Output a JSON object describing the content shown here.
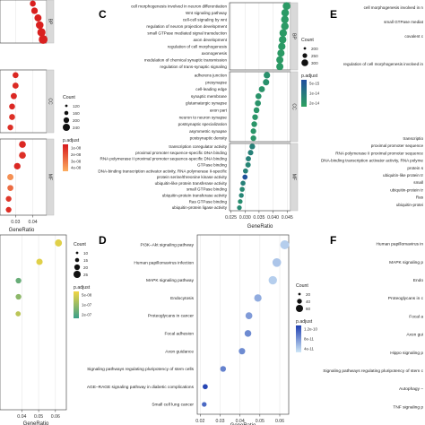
{
  "figure": {
    "background": "#ffffff",
    "strip_color": "#d9d9d9",
    "strip_border": "#bdbdbd"
  },
  "chart_data": [
    {
      "panel": "A",
      "type": "scatter",
      "letter": "",
      "xlabel": "GeneRatio",
      "x_ticks": [
        "0.03",
        "0.04"
      ],
      "x_domain": [
        0.021,
        0.048
      ],
      "x_clip": [
        0.021,
        0.048
      ],
      "facet_strips": [
        "BP",
        "CC",
        "MF"
      ],
      "size_legend": {
        "title": "Count",
        "labels": [
          "120",
          "160",
          "200",
          "240"
        ]
      },
      "color_legend": {
        "title": "p.adjust",
        "labels": [
          "1e-08",
          "2e-08",
          "3e-08",
          "4e-08"
        ],
        "colors": [
          "#d7191c",
          "#fdae61"
        ]
      },
      "facets": [
        {
          "rows": 6,
          "points": [
            {
              "row": 1,
              "x": 0.04,
              "size": 0.35,
              "color": 0.05
            },
            {
              "row": 2,
              "x": 0.041,
              "size": 0.45,
              "color": 0.05
            },
            {
              "row": 3,
              "x": 0.043,
              "size": 0.55,
              "color": 0.05
            },
            {
              "row": 4,
              "x": 0.044,
              "size": 0.65,
              "color": 0.05
            },
            {
              "row": 5,
              "x": 0.045,
              "size": 0.75,
              "color": 0.05
            },
            {
              "row": 6,
              "x": 0.046,
              "size": 0.85,
              "color": 0.05
            }
          ]
        },
        {
          "rows": 6,
          "points": [
            {
              "row": 1,
              "x": 0.03,
              "size": 0.35,
              "color": 0.1
            },
            {
              "row": 2,
              "x": 0.03,
              "size": 0.38,
              "color": 0.12
            },
            {
              "row": 3,
              "x": 0.029,
              "size": 0.38,
              "color": 0.1
            },
            {
              "row": 4,
              "x": 0.028,
              "size": 0.35,
              "color": 0.1
            },
            {
              "row": 5,
              "x": 0.028,
              "size": 0.35,
              "color": 0.15
            },
            {
              "row": 6,
              "x": 0.027,
              "size": 0.3,
              "color": 0.15
            }
          ]
        },
        {
          "rows": 7,
          "points": [
            {
              "row": 1,
              "x": 0.034,
              "size": 0.5,
              "color": 0.1
            },
            {
              "row": 2,
              "x": 0.034,
              "size": 0.5,
              "color": 0.15
            },
            {
              "row": 3,
              "x": 0.031,
              "size": 0.45,
              "color": 0.1
            },
            {
              "row": 4,
              "x": 0.027,
              "size": 0.4,
              "color": 0.8
            },
            {
              "row": 5,
              "x": 0.027,
              "size": 0.35,
              "color": 0.55
            },
            {
              "row": 6,
              "x": 0.026,
              "size": 0.3,
              "color": 0.2
            },
            {
              "row": 7,
              "x": 0.026,
              "size": 0.3,
              "color": 0.15
            }
          ]
        }
      ]
    },
    {
      "panel": "C",
      "type": "scatter",
      "letter": "C",
      "xlabel": "GeneRatio",
      "x_ticks": [
        "0.025",
        "0.030",
        "0.035",
        "0.040",
        "0.045"
      ],
      "x_domain": [
        0.0245,
        0.0462
      ],
      "facet_strips": [
        "BP",
        "CC",
        "MF"
      ],
      "size_legend": {
        "title": "Count",
        "labels": [
          "200",
          "250",
          "300"
        ]
      },
      "color_legend": {
        "title": "p.adjust",
        "labels": [
          "5e-15",
          "1e-14",
          "2e-14"
        ],
        "colors": [
          "#1f4e9e",
          "#2ca25f"
        ]
      },
      "facets": [
        {
          "terms": [
            "cell morphogenesis involved in neuron differentiation",
            "Wnt signaling pathway",
            "cell-cell signaling by wnt",
            "regulation of neuron projection development",
            "small GTPase mediated signal transduction",
            "axon development",
            "regulation of cell morphogenesis",
            "axonogenesis",
            "modulation of chemical synaptic transmission",
            "regulation of trans-synaptic signaling"
          ],
          "points": [
            {
              "x": 0.0448,
              "size": 0.9,
              "color": 0.9
            },
            {
              "x": 0.0443,
              "size": 0.88,
              "color": 0.9
            },
            {
              "x": 0.0442,
              "size": 0.87,
              "color": 0.9
            },
            {
              "x": 0.0442,
              "size": 0.87,
              "color": 0.9
            },
            {
              "x": 0.0436,
              "size": 0.85,
              "color": 0.9
            },
            {
              "x": 0.0434,
              "size": 0.85,
              "color": 0.9
            },
            {
              "x": 0.0431,
              "size": 0.82,
              "color": 0.9
            },
            {
              "x": 0.0428,
              "size": 0.8,
              "color": 0.9
            },
            {
              "x": 0.0424,
              "size": 0.78,
              "color": 0.9
            },
            {
              "x": 0.0424,
              "size": 0.78,
              "color": 0.9
            }
          ]
        },
        {
          "terms": [
            "adherens junction",
            "presynapse",
            "cell-leading edge",
            "synaptic membrane",
            "glutamatergic synapse",
            "axon part",
            "neuron to neuron synapse",
            "postsynaptic specialization",
            "asymmetric synapse",
            "postsynaptic density"
          ],
          "points": [
            {
              "x": 0.0378,
              "size": 0.65,
              "color": 0.8
            },
            {
              "x": 0.0375,
              "size": 0.62,
              "color": 0.8
            },
            {
              "x": 0.036,
              "size": 0.58,
              "color": 0.82
            },
            {
              "x": 0.0348,
              "size": 0.55,
              "color": 0.82
            },
            {
              "x": 0.0346,
              "size": 0.55,
              "color": 0.82
            },
            {
              "x": 0.0341,
              "size": 0.52,
              "color": 0.85
            },
            {
              "x": 0.0336,
              "size": 0.5,
              "color": 0.85
            },
            {
              "x": 0.0333,
              "size": 0.5,
              "color": 0.85
            },
            {
              "x": 0.033,
              "size": 0.48,
              "color": 0.85
            },
            {
              "x": 0.033,
              "size": 0.48,
              "color": 0.85
            }
          ]
        },
        {
          "terms": [
            "transcription coregulator activity",
            "proximal promoter sequence-specific DNA binding",
            "RNA polymerase II proximal promoter sequence-specific DNA binding",
            "GTPase binding",
            "DNA-binding transcription activator activity, RNA polymerase II-specific",
            "protein serine/threonine kinase activity",
            "ubiquitin-like protein transferase activity",
            "small GTPase binding",
            "ubiquitin-protein transferase activity",
            "Ras GTPase binding",
            "ubiquitin-protein ligase activity"
          ],
          "points": [
            {
              "x": 0.0326,
              "size": 0.48,
              "color": 0.6
            },
            {
              "x": 0.032,
              "size": 0.45,
              "color": 0.6
            },
            {
              "x": 0.0312,
              "size": 0.42,
              "color": 0.6
            },
            {
              "x": 0.0311,
              "size": 0.42,
              "color": 0.65
            },
            {
              "x": 0.0302,
              "size": 0.38,
              "color": 0.6
            },
            {
              "x": 0.03,
              "size": 0.38,
              "color": 0.05
            },
            {
              "x": 0.0293,
              "size": 0.35,
              "color": 0.6
            },
            {
              "x": 0.029,
              "size": 0.35,
              "color": 0.7
            },
            {
              "x": 0.0287,
              "size": 0.32,
              "color": 0.65
            },
            {
              "x": 0.0283,
              "size": 0.3,
              "color": 0.75
            },
            {
              "x": 0.028,
              "size": 0.3,
              "color": 0.7
            }
          ]
        }
      ]
    },
    {
      "panel": "E",
      "type": "scatter",
      "letter": "E",
      "terms_top": [
        "cell morphogenesis involved in n",
        "small GTPase mediat",
        "covalent c"
      ],
      "term_mid": "regulation of cell morphogenesis involved in",
      "terms_bottom": [
        "transcriptio",
        "proximal promoter sequence",
        "RNA polymerase II proximal promoter sequence",
        "DNA-binding transcription activator activity, RNA polyme",
        "protein s",
        "ubiquitin-like protein tr",
        "small",
        "ubiquitin-protein tr",
        "Ras",
        "ubiquitin-protei"
      ]
    },
    {
      "panel": "B",
      "type": "scatter",
      "letter": "",
      "xlabel": "GeneRatio",
      "x_ticks": [
        "0.04",
        "0.05",
        "0.06"
      ],
      "x_domain": [
        0.027,
        0.0665
      ],
      "x_clip": [
        0.027,
        0.0665
      ],
      "size_legend": {
        "title": "Count",
        "labels": [
          "10",
          "15",
          "20",
          "25"
        ]
      },
      "color_legend": {
        "title": "p.adjust",
        "labels": [
          "5e-08",
          "1e-07",
          "2e-07"
        ],
        "colors": [
          "#f2d542",
          "#3aa08a"
        ]
      },
      "points": [
        {
          "x": 0.0618,
          "size": 0.75,
          "color": 0.1
        },
        {
          "x": 0.0505,
          "size": 0.6,
          "color": 0.1
        },
        {
          "x": 0.038,
          "size": 0.45,
          "color": 0.75
        },
        {
          "x": 0.038,
          "size": 0.45,
          "color": 0.55
        },
        {
          "x": 0.0378,
          "size": 0.35,
          "color": 0.3
        }
      ]
    },
    {
      "panel": "D",
      "type": "scatter",
      "letter": "D",
      "xlabel": "GeneRatio",
      "x_ticks": [
        "0.02",
        "0.03",
        "0.04",
        "0.05",
        "0.06"
      ],
      "x_domain": [
        0.0185,
        0.0645
      ],
      "size_legend": {
        "title": "Count",
        "labels": [
          "20",
          "40",
          "60"
        ]
      },
      "color_legend": {
        "title": "p.adjust",
        "labels": [
          "1.2e-10",
          "8e-11",
          "4e-11"
        ],
        "colors": [
          "#1f3fb2",
          "#cfe7f7"
        ]
      },
      "terms": [
        "PI3K–Akt signaling pathway",
        "Human papillomavirus infection",
        "MAPK signaling pathway",
        "Endocytosis",
        "Proteoglycans in cancer",
        "Focal adhesion",
        "Axon guidance",
        "Signaling pathways regulating pluripotency of stem cells",
        "AGE–RAGE signaling pathway in diabetic complications",
        "Small cell lung cancer"
      ],
      "points": [
        {
          "x": 0.0625,
          "size": 0.95,
          "color": 0.85
        },
        {
          "x": 0.0585,
          "size": 0.9,
          "color": 0.8
        },
        {
          "x": 0.0565,
          "size": 0.85,
          "color": 0.85
        },
        {
          "x": 0.049,
          "size": 0.7,
          "color": 0.65
        },
        {
          "x": 0.0445,
          "size": 0.62,
          "color": 0.55
        },
        {
          "x": 0.044,
          "size": 0.6,
          "color": 0.45
        },
        {
          "x": 0.041,
          "size": 0.55,
          "color": 0.45
        },
        {
          "x": 0.0315,
          "size": 0.45,
          "color": 0.4
        },
        {
          "x": 0.0225,
          "size": 0.35,
          "color": 0.05
        },
        {
          "x": 0.022,
          "size": 0.3,
          "color": 0.25
        }
      ]
    },
    {
      "panel": "F",
      "type": "scatter",
      "letter": "F",
      "terms": [
        "Human papillomavirus in",
        "MAPK signaling p",
        "Endo",
        "Proteoglycans in c",
        "Focal a",
        "Axon gui",
        "Hippo signaling p",
        "Signaling pathways regulating pluripotency of stem c",
        "Autophagy –",
        "TNF signaling p"
      ]
    }
  ]
}
